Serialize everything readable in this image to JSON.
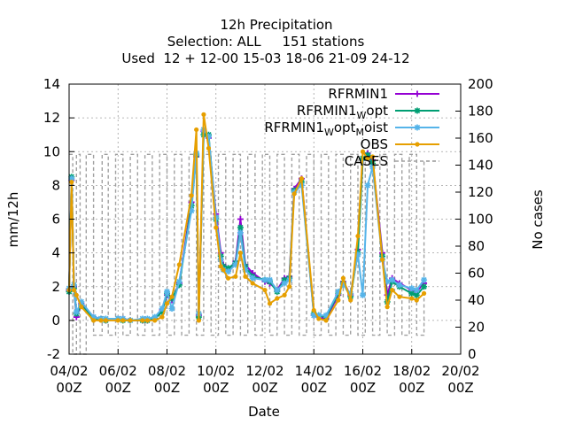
{
  "chart_data": {
    "type": "line",
    "title_lines": [
      "12h Precipitation",
      "Selection: ALL     151 stations",
      "Used  12 + 12-00 15-03 18-06 21-09 24-12"
    ],
    "xlabel": "Date",
    "ylabel": "mm/12h",
    "y2label": "No cases",
    "xlim": [
      0,
      16
    ],
    "ylim": [
      -2,
      14
    ],
    "y2lim": [
      0,
      200
    ],
    "yticks": [
      "-2",
      "0",
      "2",
      "4",
      "6",
      "8",
      "10",
      "12",
      "14"
    ],
    "y2ticks": [
      "0",
      "20",
      "40",
      "60",
      "80",
      "100",
      "120",
      "140",
      "160",
      "180",
      "200"
    ],
    "xticks": [
      {
        "x": 0,
        "date": "04/02",
        "time": "00Z"
      },
      {
        "x": 2,
        "date": "06/02",
        "time": "00Z"
      },
      {
        "x": 4,
        "date": "08/02",
        "time": "00Z"
      },
      {
        "x": 6,
        "date": "10/02",
        "time": "00Z"
      },
      {
        "x": 8,
        "date": "12/02",
        "time": "00Z"
      },
      {
        "x": 10,
        "date": "14/02",
        "time": "00Z"
      },
      {
        "x": 12,
        "date": "16/02",
        "time": "00Z"
      },
      {
        "x": 14,
        "date": "18/02",
        "time": "00Z"
      },
      {
        "x": 16,
        "date": "20/02",
        "time": "00Z"
      }
    ],
    "grid": true,
    "legend_position": "top-right",
    "legend": [
      {
        "main": "RFRMIN1",
        "sub": "",
        "tail": "",
        "sub2": "",
        "tail2": "",
        "color": "#9400d3",
        "marker": "plus"
      },
      {
        "main": "RFRMIN1",
        "sub": "W",
        "tail": "opt",
        "sub2": "",
        "tail2": "",
        "color": "#009e73",
        "marker": "star"
      },
      {
        "main": "RFRMIN1",
        "sub": "W",
        "tail": "opt",
        "sub2": "M",
        "tail2": "oist",
        "color": "#56b4e9",
        "marker": "star"
      },
      {
        "main": "OBS",
        "sub": "",
        "tail": "",
        "sub2": "",
        "tail2": "",
        "color": "#e69f00",
        "marker": "circle"
      },
      {
        "main": "CASES",
        "sub": "",
        "tail": "",
        "sub2": "",
        "tail2": "",
        "color": "#a0a0a0",
        "marker": "dash"
      }
    ],
    "series": [
      {
        "key": "rfrmin1",
        "color": "#9400d3",
        "x": [
          0,
          0.1,
          0.2,
          0.3,
          0.5,
          1.0,
          1.3,
          1.5,
          2.0,
          2.2,
          2.5,
          3.0,
          3.2,
          3.5,
          3.8,
          4.0,
          4.2,
          4.5,
          5.0,
          5.2,
          5.3,
          5.5,
          5.7,
          6.0,
          6.2,
          6.3,
          6.5,
          6.8,
          7.0,
          7.2,
          7.5,
          8.0,
          8.2,
          8.5,
          8.8,
          9.0,
          9.2,
          9.5,
          10.0,
          10.2,
          10.5,
          11.0,
          11.2,
          11.5,
          11.8,
          12.0,
          12.2,
          12.4,
          12.8,
          13.0,
          13.2,
          13.5,
          14.0,
          14.2,
          14.5
        ],
        "y": [
          1.8,
          8.3,
          2.0,
          0.2,
          1.0,
          0.2,
          0.1,
          0.0,
          0.1,
          0.1,
          0.0,
          0.0,
          0.0,
          0.1,
          0.6,
          1.5,
          1.2,
          2.2,
          7.0,
          9.7,
          0.3,
          11.2,
          10.8,
          6.3,
          4.0,
          3.3,
          3.0,
          3.5,
          6.0,
          3.3,
          2.8,
          2.3,
          2.2,
          1.8,
          2.5,
          2.6,
          7.8,
          8.4,
          0.3,
          0.2,
          0.1,
          1.5,
          2.3,
          1.5,
          4.2,
          9.5,
          9.9,
          9.5,
          4.0,
          1.5,
          2.5,
          2.2,
          1.8,
          1.7,
          2.2
        ]
      },
      {
        "key": "wopt",
        "color": "#009e73",
        "x": [
          0,
          0.1,
          0.2,
          0.3,
          0.5,
          1.0,
          1.3,
          1.5,
          2.0,
          2.2,
          2.5,
          3.0,
          3.2,
          3.5,
          3.8,
          4.0,
          4.2,
          4.5,
          5.0,
          5.2,
          5.3,
          5.5,
          5.7,
          6.0,
          6.2,
          6.3,
          6.5,
          6.8,
          7.0,
          7.2,
          7.5,
          8.0,
          8.2,
          8.5,
          8.8,
          9.0,
          9.2,
          9.5,
          10.0,
          10.2,
          10.5,
          11.0,
          11.2,
          11.5,
          11.8,
          12.0,
          12.2,
          12.4,
          12.8,
          13.0,
          13.2,
          13.5,
          14.0,
          14.2,
          14.5
        ],
        "y": [
          1.7,
          8.5,
          1.9,
          0.4,
          0.9,
          0.1,
          0.1,
          0.0,
          0.1,
          0.0,
          0.0,
          0.0,
          0.0,
          0.1,
          0.5,
          1.6,
          1.3,
          2.1,
          6.8,
          9.8,
          0.2,
          11.0,
          11.0,
          6.0,
          3.8,
          3.2,
          3.1,
          3.4,
          5.5,
          3.2,
          2.6,
          2.4,
          2.3,
          1.7,
          2.4,
          2.5,
          7.7,
          8.2,
          0.4,
          0.3,
          0.2,
          1.6,
          2.2,
          1.4,
          4.0,
          9.6,
          9.8,
          9.3,
          3.8,
          1.1,
          2.3,
          2.0,
          1.6,
          1.5,
          2.0
        ]
      },
      {
        "key": "wopt_moist",
        "color": "#56b4e9",
        "x": [
          0,
          0.1,
          0.2,
          0.3,
          0.5,
          1.0,
          1.3,
          1.5,
          2.0,
          2.2,
          2.5,
          3.0,
          3.2,
          3.5,
          3.8,
          4.0,
          4.2,
          4.5,
          5.0,
          5.2,
          5.3,
          5.5,
          5.7,
          6.0,
          6.2,
          6.3,
          6.5,
          6.8,
          7.0,
          7.2,
          7.5,
          8.0,
          8.2,
          8.5,
          8.8,
          9.0,
          9.2,
          9.5,
          10.0,
          10.2,
          10.5,
          11.0,
          11.2,
          11.5,
          11.8,
          12.0,
          12.2,
          12.4,
          12.8,
          13.0,
          13.2,
          13.5,
          14.0,
          14.2,
          14.5
        ],
        "y": [
          1.9,
          8.4,
          2.1,
          0.5,
          1.1,
          0.2,
          0.1,
          0.1,
          0.1,
          0.1,
          0.0,
          0.1,
          0.1,
          0.2,
          0.7,
          1.7,
          0.7,
          2.3,
          6.5,
          9.9,
          0.4,
          11.3,
          10.9,
          6.1,
          3.6,
          3.0,
          2.9,
          3.3,
          5.2,
          3.0,
          2.5,
          2.4,
          2.4,
          1.8,
          2.2,
          2.4,
          7.6,
          8.0,
          0.3,
          0.3,
          0.3,
          1.7,
          2.1,
          1.6,
          3.9,
          1.5,
          8.0,
          9.1,
          3.6,
          2.3,
          2.4,
          2.1,
          1.9,
          1.8,
          2.4
        ]
      },
      {
        "key": "obs",
        "color": "#e69f00",
        "x": [
          0,
          0.1,
          0.2,
          0.3,
          0.5,
          1.0,
          1.3,
          1.5,
          2.0,
          2.2,
          2.5,
          3.0,
          3.2,
          3.5,
          3.8,
          4.0,
          4.2,
          4.5,
          5.0,
          5.2,
          5.3,
          5.5,
          5.7,
          6.0,
          6.2,
          6.3,
          6.5,
          6.8,
          7.0,
          7.2,
          7.5,
          8.0,
          8.2,
          8.5,
          8.8,
          9.0,
          9.2,
          9.5,
          10.0,
          10.2,
          10.5,
          11.0,
          11.2,
          11.5,
          11.8,
          12.0,
          12.2,
          12.4,
          12.8,
          13.0,
          13.2,
          13.5,
          14.0,
          14.2,
          14.5
        ],
        "y": [
          1.8,
          8.2,
          1.8,
          1.5,
          0.8,
          0.0,
          0.0,
          0.0,
          0.0,
          0.0,
          0.0,
          0.0,
          0.0,
          0.0,
          0.2,
          1.0,
          1.4,
          3.3,
          7.4,
          11.3,
          0.0,
          12.2,
          10.2,
          5.5,
          3.2,
          3.0,
          2.5,
          2.6,
          4.0,
          2.6,
          2.2,
          1.8,
          1.0,
          1.3,
          1.5,
          2.0,
          7.5,
          8.4,
          0.6,
          0.1,
          0.0,
          1.2,
          2.5,
          1.2,
          5.0,
          10.0,
          9.6,
          9.7,
          3.6,
          0.8,
          1.8,
          1.4,
          1.3,
          1.2,
          1.6
        ]
      }
    ],
    "cases": {
      "color": "#a0a0a0",
      "x": [
        0,
        0.15,
        0.15,
        0.3,
        0.3,
        0.45,
        0.45,
        0.7,
        0.7,
        1.0,
        1.0,
        1.35,
        1.35,
        1.6,
        1.6,
        1.9,
        1.9,
        2.2,
        2.2,
        2.5,
        2.5,
        2.8,
        2.8,
        3.1,
        3.1,
        3.4,
        3.4,
        3.7,
        3.7,
        4.0,
        4.0,
        4.3,
        4.3,
        4.6,
        4.6,
        4.9,
        4.9,
        5.2,
        5.2,
        5.5,
        5.5,
        5.8,
        5.8,
        6.1,
        6.1,
        6.4,
        6.4,
        6.7,
        6.7,
        7.0,
        7.0,
        7.3,
        7.3,
        7.6,
        7.6,
        7.9,
        7.9,
        8.2,
        8.2,
        8.5,
        8.5,
        8.8,
        8.8,
        9.1,
        9.1,
        9.4,
        9.4,
        9.7,
        9.7,
        10.0,
        10.0,
        10.3,
        10.3,
        10.6,
        10.6,
        10.9,
        10.9,
        11.2,
        11.2,
        11.5,
        11.5,
        11.8,
        11.8,
        12.1,
        12.1,
        12.4,
        12.4,
        12.7,
        12.7,
        13.0,
        13.0,
        13.3,
        13.3,
        13.6,
        13.6,
        13.9,
        13.9,
        14.2,
        14.2,
        14.5,
        14.5,
        15.0
      ],
      "y": [
        148,
        148,
        0,
        0,
        148,
        148,
        0,
        0,
        148,
        148,
        14,
        14,
        148,
        148,
        14,
        14,
        148,
        148,
        14,
        14,
        148,
        148,
        14,
        14,
        148,
        148,
        14,
        14,
        148,
        148,
        14,
        14,
        148,
        148,
        14,
        14,
        148,
        148,
        14,
        14,
        148,
        148,
        14,
        14,
        148,
        148,
        14,
        14,
        148,
        148,
        14,
        14,
        148,
        148,
        14,
        14,
        148,
        148,
        14,
        14,
        148,
        148,
        14,
        14,
        148,
        148,
        14,
        14,
        148,
        148,
        14,
        14,
        148,
        148,
        14,
        14,
        148,
        148,
        14,
        14,
        148,
        148,
        14,
        14,
        148,
        148,
        14,
        14,
        148,
        148,
        14,
        14,
        148,
        148,
        14,
        14,
        148,
        148,
        14,
        14,
        143,
        143
      ]
    }
  }
}
